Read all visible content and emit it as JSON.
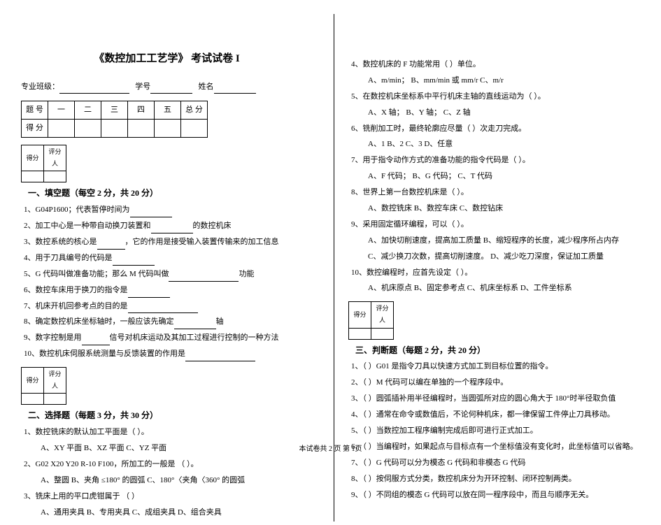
{
  "title": "《数控加工工艺学》 考试试卷 I",
  "header": {
    "class_label": "专业班级：",
    "id_label": "学号",
    "name_label": "姓名"
  },
  "score_table": {
    "header": [
      "题 号",
      "一",
      "二",
      "三",
      "四",
      "五",
      "总 分"
    ],
    "row_label": "得 分"
  },
  "box": {
    "col1": "得分",
    "col2": "评分人"
  },
  "section1": {
    "title": "一、填空题（每空 2 分，共 20 分）",
    "q1": "1、G04P1600；代表暂停时间为",
    "q2a": "2、加工中心是一种带自动换刀装置和",
    "q2b": "的数控机床",
    "q3a": "3、数控系统的核心是",
    "q3b": "，它的作用是接受输入装置传输来的加工信息",
    "q4": "4、用于刀具编号的代码是",
    "q5a": "5、G 代码叫做准备功能；那么 M 代码叫做",
    "q5b": "功能",
    "q6": "6、数控车床用于换刀的指令是",
    "q7": "7、机床开机回参考点的目的是",
    "q8a": "8、确定数控机床坐标轴时，一般应该先确定",
    "q8b": "轴",
    "q9a": "9、数字控制是用",
    "q9b": "信号对机床运动及其加工过程进行控制的一种方法",
    "q10a": "10、数控机床伺服系统测量与反馈装置的作用是"
  },
  "section2": {
    "title": "二、选择题（每题 3 分，共 30 分）",
    "q1": "1、数控铣床的默认加工平面是（  ）。",
    "q1opts": "A、XY 平面      B、XZ 平面      C、YZ 平面",
    "q2": "2、G02 X20 Y20 R-10 F100，所加工的一般是 （  ）。",
    "q2opts": "A、整圆   B、夹角 ≤180° 的圆弧   C、180°〈夹角〈360° 的圆弧",
    "q3": "3、铣床上用的平口虎钳属于 （  ）",
    "q3opts": "A、通用夹具      B、专用夹具      C、成组夹具      D、组合夹具"
  },
  "right": {
    "q4": "4、数控机床的 F 功能常用（  ）单位。",
    "q4opts": "A、m/min；   B、mm/min 或 mm/r   C、m/r",
    "q5": "5、在数控机床坐标系中平行机床主轴的直线运动为（  ）。",
    "q5opts": "A、X 轴；     B、Y 轴；     C、Z 轴",
    "q6": "6、铣削加工时，最终轮廓应尽量（     ）次走刀完成。",
    "q6opts": "A、1      B、2      C、3       D、任意",
    "q7": "7、用于指令动作方式的准备功能的指令代码是（  ）。",
    "q7opts": "A、F 代码；   B、G 代码；   C、T 代码",
    "q8": "8、世界上第一台数控机床是（  ）。",
    "q8opts": "A、数控铣床   B、数控车床     C、数控钻床",
    "q9": "9、采用固定循环编程，可以（  ）。",
    "q9optsA": "A、加快切削速度，提高加工质量    B、缩短程序的长度，减少程序所占内存",
    "q9optsB": "C、减少换刀次数，提高切削速度。  D、减少吃刀深度，保证加工质量",
    "q10": "10、数控编程时，应首先设定（  ）。",
    "q10opts": "A、机床原点    B、固定参考点  C、机床坐标系   D、工件坐标系"
  },
  "section3": {
    "title": "三、判断题（每题 2 分，共 20 分）",
    "q1": "1、（   ）G01 是指令刀具以快速方式加工到目标位置的指令。",
    "q2": "2、（   ）M 代码可以编在单独的一个程序段中。",
    "q3": "3、（   ）圆弧插补用半径编程时，当圆弧所对应的圆心角大于 180°时半径取负值",
    "q4": "4、（   ）通常在命令或数值后，不论何种机床，都一律保留工件停止刀具移动。",
    "q5": "5、（   ）当数控加工程序编制完成后即可进行正式加工。",
    "q6": "6、（   ）当编程时，如果起点与目标点有一个坐标值没有变化时，此坐标值可以省略。",
    "q7": "7、（   ）G 代码可以分为模态 G 代码和非模态 G 代码",
    "q8": "8、（   ）按伺服方式分类，数控机床分为开环控制、闭环控制两类。",
    "q9": "9、（   ）不同组的模态 G 代码可以放在同一程序段中，而且与顺序无关。"
  },
  "footer": "本试卷共 2 页  第 1页"
}
